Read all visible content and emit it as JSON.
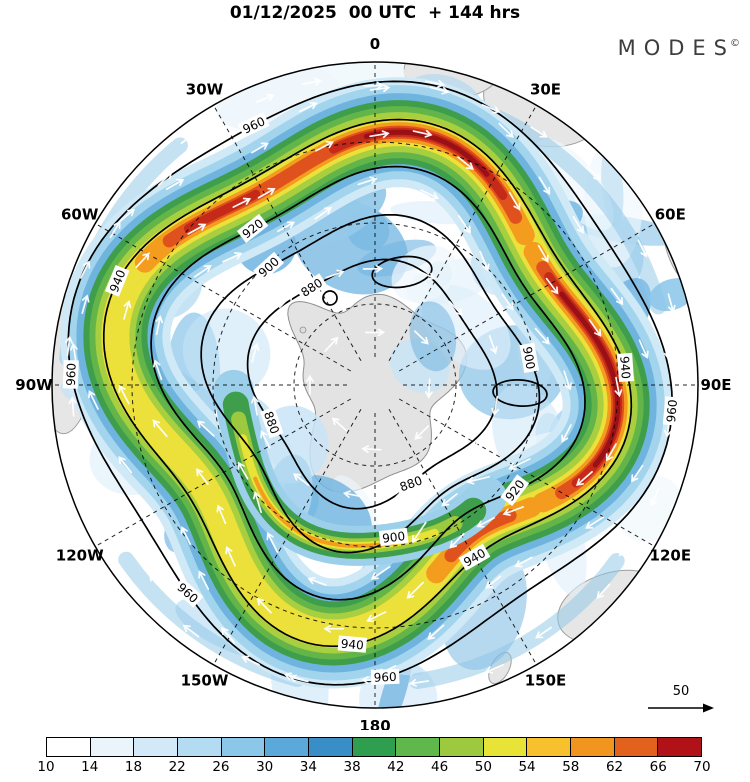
{
  "header": {
    "title": "01/12/2025  00 UTC  + 144 hrs",
    "brand": "MODES",
    "brand_mark": "©"
  },
  "map": {
    "longitude_labels": [
      {
        "text": "0",
        "angle": 0
      },
      {
        "text": "30E",
        "angle": 30
      },
      {
        "text": "60E",
        "angle": 60
      },
      {
        "text": "90E",
        "angle": 90
      },
      {
        "text": "120E",
        "angle": 120
      },
      {
        "text": "150E",
        "angle": 150
      },
      {
        "text": "180",
        "angle": 180
      },
      {
        "text": "150W",
        "angle": 210
      },
      {
        "text": "120W",
        "angle": 240
      },
      {
        "text": "90W",
        "angle": 270
      },
      {
        "text": "60W",
        "angle": 300
      },
      {
        "text": "30W",
        "angle": 330
      }
    ],
    "contour_levels": [
      "880",
      "900",
      "920",
      "940",
      "960"
    ],
    "contour_labels": [
      {
        "text": "960",
        "angle": 335
      },
      {
        "text": "960",
        "angle": 272
      },
      {
        "text": "960",
        "angle": 95
      },
      {
        "text": "960",
        "angle": 178
      },
      {
        "text": "960",
        "angle": 222
      },
      {
        "text": "940",
        "angle": 292
      },
      {
        "text": "940",
        "angle": 86
      },
      {
        "text": "940",
        "angle": 185
      },
      {
        "text": "940",
        "angle": 150
      },
      {
        "text": "920",
        "angle": 322
      },
      {
        "text": "920",
        "angle": 127
      },
      {
        "text": "900",
        "angle": 318
      },
      {
        "text": "900",
        "angle": 80
      },
      {
        "text": "900",
        "angle": 173
      },
      {
        "text": "880",
        "angle": 327
      },
      {
        "text": "880",
        "angle": 250
      },
      {
        "text": "880",
        "angle": 160
      }
    ],
    "reference_arrow_label": "50"
  },
  "colorbar": {
    "ticks": [
      "10",
      "14",
      "18",
      "22",
      "26",
      "30",
      "34",
      "38",
      "42",
      "46",
      "50",
      "54",
      "58",
      "62",
      "66",
      "70"
    ],
    "colors": [
      "#ffffff",
      "#eaf5fb",
      "#d3e9f7",
      "#b3dcf2",
      "#8ac7e9",
      "#5ba9da",
      "#3a8ec7",
      "#2f9e4f",
      "#5fb84c",
      "#9cc93e",
      "#e8e337",
      "#f6c12d",
      "#f1951f",
      "#e2611c",
      "#b01218"
    ]
  }
}
